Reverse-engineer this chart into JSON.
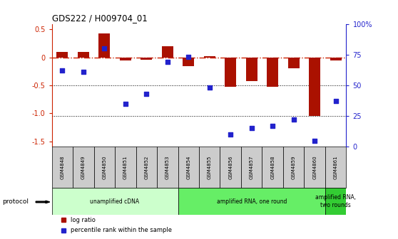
{
  "title": "GDS222 / H009704_01",
  "samples": [
    "GSM4848",
    "GSM4849",
    "GSM4850",
    "GSM4851",
    "GSM4852",
    "GSM4853",
    "GSM4854",
    "GSM4855",
    "GSM4856",
    "GSM4857",
    "GSM4858",
    "GSM4859",
    "GSM4860",
    "GSM4861"
  ],
  "log_ratio": [
    0.1,
    0.1,
    0.43,
    -0.05,
    -0.04,
    0.2,
    -0.15,
    0.02,
    -0.52,
    -0.42,
    -0.52,
    -0.2,
    -1.05,
    -0.05
  ],
  "percentile": [
    62,
    61,
    80,
    35,
    43,
    69,
    73,
    48,
    10,
    15,
    17,
    22,
    5,
    37
  ],
  "ylim_left": [
    -1.6,
    0.6
  ],
  "ylim_right": [
    0,
    100
  ],
  "left_ticks": [
    0.5,
    0,
    -0.5,
    -1.0,
    -1.5
  ],
  "right_ticks": [
    100,
    75,
    50,
    25,
    0
  ],
  "right_tick_labels": [
    "100%",
    "75",
    "50",
    "25",
    "0"
  ],
  "bar_color": "#aa1100",
  "dot_color": "#2222cc",
  "hline_color": "#cc2200",
  "dotline_color": "#000000",
  "bg_color": "#ffffff",
  "sample_box_color": "#cccccc",
  "protocols": [
    {
      "label": "unamplified cDNA",
      "start": 0,
      "end": 5,
      "color": "#ccffcc"
    },
    {
      "label": "amplified RNA, one round",
      "start": 6,
      "end": 12,
      "color": "#66ee66"
    },
    {
      "label": "amplified RNA,\ntwo rounds",
      "start": 13,
      "end": 13,
      "color": "#33cc33"
    }
  ],
  "legend_items": [
    {
      "label": "log ratio",
      "color": "#aa1100"
    },
    {
      "label": "percentile rank within the sample",
      "color": "#2222cc"
    }
  ]
}
